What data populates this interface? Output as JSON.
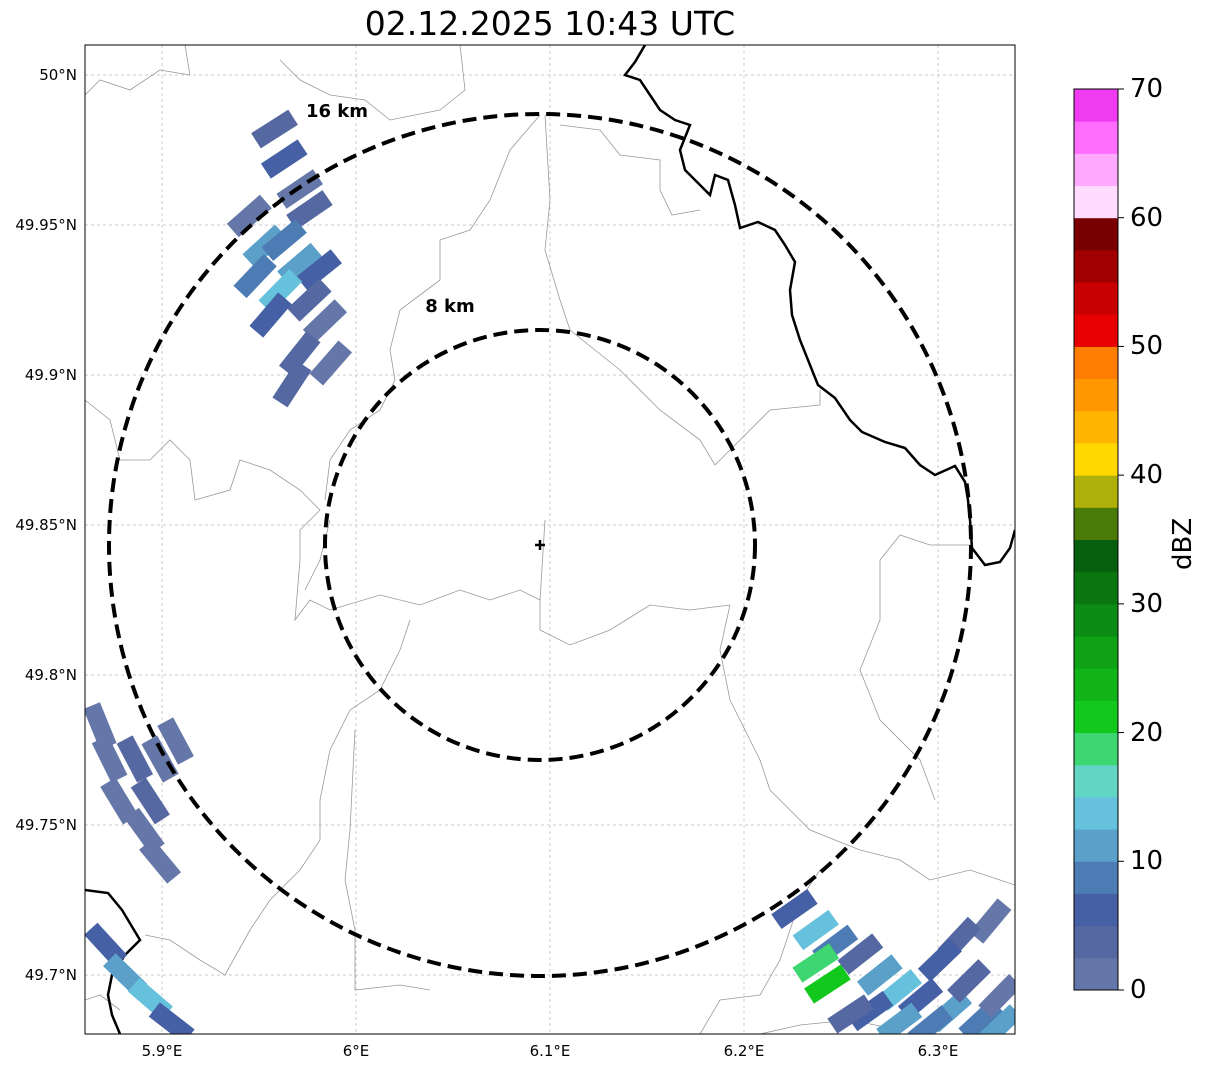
{
  "title": "02.12.2025 10:43 UTC",
  "map": {
    "lon_range": [
      5.86,
      6.34
    ],
    "lat_range": [
      49.68,
      50.01
    ],
    "lon_ticks": [
      {
        "v": 5.9,
        "label": "5.9°E"
      },
      {
        "v": 6.0,
        "label": "6°E"
      },
      {
        "v": 6.1,
        "label": "6.1°E"
      },
      {
        "v": 6.2,
        "label": "6.2°E"
      },
      {
        "v": 6.3,
        "label": "6.3°E"
      }
    ],
    "lat_ticks": [
      {
        "v": 50.0,
        "label": "50°N"
      },
      {
        "v": 49.95,
        "label": "49.95°N"
      },
      {
        "v": 49.9,
        "label": "49.9°N"
      },
      {
        "v": 49.85,
        "label": "49.85°N"
      },
      {
        "v": 49.8,
        "label": "49.8°N"
      },
      {
        "v": 49.75,
        "label": "49.75°N"
      },
      {
        "v": 49.7,
        "label": "49.7°N"
      }
    ],
    "center": {
      "lon": 6.095,
      "lat": 49.843
    },
    "rings": [
      {
        "km": 8,
        "label": "8 km"
      },
      {
        "km": 16,
        "label": "16 km"
      }
    ]
  },
  "radar_cells": [
    [
      5.958,
      49.982,
      4
    ],
    [
      5.963,
      49.972,
      6
    ],
    [
      5.971,
      49.962,
      2
    ],
    [
      5.976,
      49.955,
      4
    ],
    [
      5.945,
      49.953,
      2
    ],
    [
      5.953,
      49.943,
      10
    ],
    [
      5.963,
      49.945,
      8
    ],
    [
      5.971,
      49.937,
      12
    ],
    [
      5.981,
      49.935,
      6
    ],
    [
      5.948,
      49.933,
      8
    ],
    [
      5.961,
      49.928,
      14
    ],
    [
      5.976,
      49.925,
      4
    ],
    [
      5.984,
      49.918,
      2
    ],
    [
      5.956,
      49.92,
      6
    ],
    [
      5.971,
      49.907,
      4
    ],
    [
      5.987,
      49.904,
      2
    ],
    [
      5.967,
      49.897,
      4
    ],
    [
      5.868,
      49.783,
      2
    ],
    [
      5.873,
      49.772,
      2
    ],
    [
      5.886,
      49.772,
      4
    ],
    [
      5.899,
      49.772,
      2
    ],
    [
      5.878,
      49.758,
      2
    ],
    [
      5.894,
      49.758,
      4
    ],
    [
      5.891,
      49.748,
      2
    ],
    [
      5.899,
      49.738,
      2
    ],
    [
      5.907,
      49.778,
      2
    ],
    [
      5.871,
      49.71,
      6
    ],
    [
      5.881,
      49.7,
      12
    ],
    [
      5.894,
      49.692,
      14
    ],
    [
      5.905,
      49.684,
      6
    ],
    [
      6.226,
      49.722,
      6
    ],
    [
      6.237,
      49.715,
      14
    ],
    [
      6.247,
      49.71,
      8
    ],
    [
      6.237,
      49.704,
      19
    ],
    [
      6.243,
      49.697,
      22
    ],
    [
      6.26,
      49.707,
      4
    ],
    [
      6.27,
      49.7,
      10
    ],
    [
      6.28,
      49.695,
      14
    ],
    [
      6.291,
      49.692,
      6
    ],
    [
      6.306,
      49.688,
      12
    ],
    [
      6.322,
      49.685,
      8
    ],
    [
      6.332,
      49.683,
      10
    ],
    [
      6.327,
      49.718,
      2
    ],
    [
      6.311,
      49.712,
      4
    ],
    [
      6.301,
      49.705,
      6
    ],
    [
      6.316,
      49.698,
      4
    ],
    [
      6.332,
      49.693,
      2
    ],
    [
      6.265,
      49.688,
      6
    ],
    [
      6.28,
      49.684,
      12
    ],
    [
      6.255,
      49.687,
      4
    ],
    [
      6.296,
      49.683,
      8
    ]
  ],
  "colorbar": {
    "label": "dBZ",
    "min": 0,
    "max": 70,
    "step": 2.5,
    "ticks": [
      "0",
      "10",
      "20",
      "30",
      "40",
      "50",
      "60",
      "70"
    ],
    "colors": [
      "#6577a8",
      "#5668a1",
      "#4660a5",
      "#4d7cb4",
      "#5aa0c8",
      "#66c1dc",
      "#63d5c4",
      "#3dd670",
      "#13c81c",
      "#10b418",
      "#0ea214",
      "#0c8c14",
      "#0a7610",
      "#065f0c",
      "#4a7a08",
      "#afb00a",
      "#ffd800",
      "#ffb400",
      "#ff9800",
      "#ff7d00",
      "#e60000",
      "#c80000",
      "#a00000",
      "#780000",
      "#ffdcff",
      "#ffaaff",
      "#ff6eff",
      "#f03cf0"
    ]
  }
}
